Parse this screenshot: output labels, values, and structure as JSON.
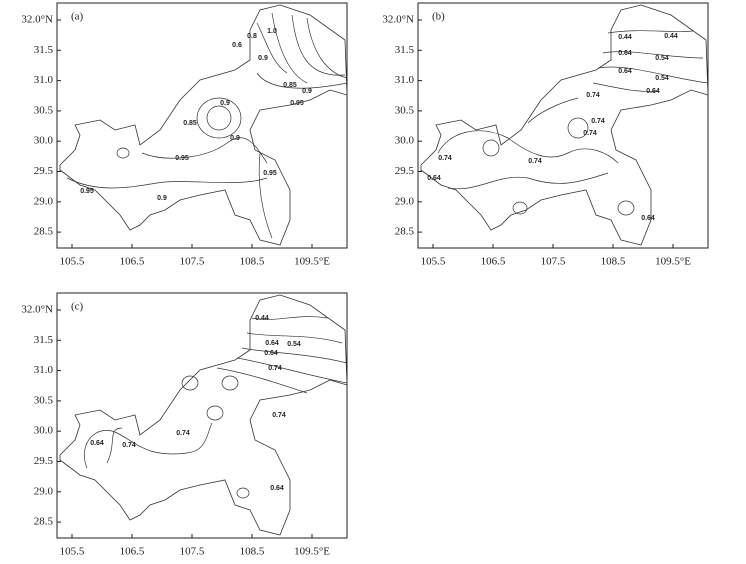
{
  "panels": [
    {
      "label": "(a)",
      "y_ticks": [
        "32.0°N",
        "31.5",
        "31.0",
        "30.5",
        "30.0",
        "29.5",
        "29.0",
        "28.5"
      ],
      "x_ticks": [
        "105.5",
        "106.5",
        "107.5",
        "108.5",
        "109.5°E"
      ],
      "contour_labels": [
        "0.6",
        "0.8",
        "1.0",
        "0.9",
        "0.85",
        "0.9",
        "0.95",
        "0.9",
        "0.85",
        "0.95",
        "0.9",
        "0.95",
        "0.9",
        "0.95"
      ]
    },
    {
      "label": "(b)",
      "y_ticks": [
        "32.0°N",
        "31.5",
        "31.0",
        "30.5",
        "30.0",
        "29.5",
        "29.0",
        "28.5"
      ],
      "x_ticks": [
        "105.5",
        "106.5",
        "107.5",
        "108.5",
        "109.5°E"
      ],
      "contour_labels": [
        "0.44",
        "0.44",
        "0.64",
        "0.54",
        "0.64",
        "0.54",
        "0.64",
        "0.74",
        "0.74",
        "0.74",
        "0.74",
        "0.74",
        "0.64",
        "0.64"
      ]
    },
    {
      "label": "(c)",
      "y_ticks": [
        "32.0°N",
        "31.5",
        "31.0",
        "30.5",
        "30.0",
        "29.5",
        "29.0",
        "28.5"
      ],
      "x_ticks": [
        "105.5",
        "106.5",
        "107.5",
        "108.5",
        "109.5°E"
      ],
      "contour_labels": [
        "0.44",
        "0.64",
        "0.54",
        "0.64",
        "0.74",
        "0.74",
        "0.74",
        "0.64",
        "0.74",
        "0.64"
      ]
    }
  ]
}
